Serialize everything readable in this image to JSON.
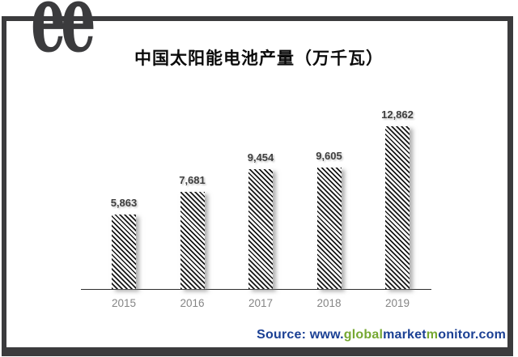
{
  "logo": {
    "glyphs": "ee",
    "color": "#3b3b3d"
  },
  "chart_data": {
    "type": "bar",
    "title": "中国太阳能电池产量（万千瓦）",
    "categories": [
      "2015",
      "2016",
      "2017",
      "2018",
      "2019"
    ],
    "values": [
      5863,
      7681,
      9454,
      9605,
      12862
    ],
    "value_labels": [
      "5,863",
      "7,681",
      "9,454",
      "9,605",
      "12,862"
    ],
    "xlabel": "",
    "ylabel": "",
    "ylim": [
      0,
      13000
    ],
    "grid": false,
    "legend": false,
    "bar_fill": "black-white-diagonal-hatch",
    "axis_color": "#2e2e2e",
    "value_label_color": "#3f3f3f",
    "tick_label_color": "#858585"
  },
  "source": {
    "segments": [
      {
        "text": "Source: www.",
        "color": "#1b4094"
      },
      {
        "text": "global",
        "color": "#76a832"
      },
      {
        "text": "market",
        "color": "#1b4094"
      },
      {
        "text": "m",
        "color": "#76a832"
      },
      {
        "text": "onitor.com",
        "color": "#1b4094"
      }
    ]
  },
  "frame": {
    "color": "#3b3b3d"
  }
}
